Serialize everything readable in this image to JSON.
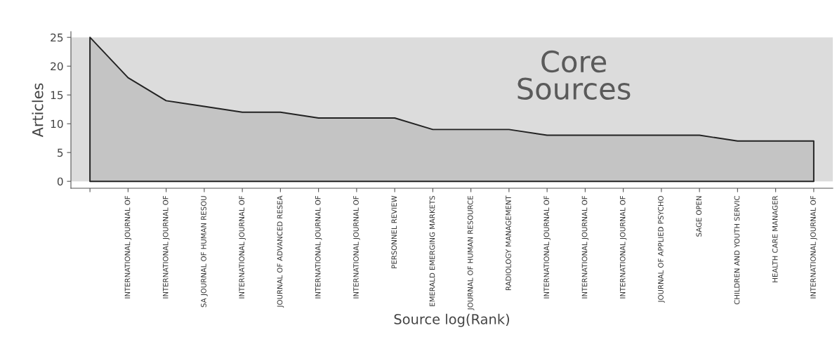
{
  "chart_data": {
    "type": "area",
    "xlabel": "Source log(Rank)",
    "ylabel": "Articles",
    "categories": [
      null,
      "INTERNATIONAL JOURNAL OF",
      "INTERNATIONAL JOURNAL OF",
      "SA JOURNAL OF HUMAN RESOU",
      "INTERNATIONAL JOURNAL OF",
      "JOURNAL OF ADVANCED RESEA",
      "INTERNATIONAL JOURNAL OF",
      "INTERNATIONAL JOURNAL OF",
      "PERSONNEL REVIEW",
      "EMERALD EMERGING MARKETS",
      "JOURNAL OF HUMAN RESOURCE",
      "RADIOLOGY MANAGEMENT",
      "INTERNATIONAL JOURNAL OF",
      "INTERNATIONAL JOURNAL OF",
      "INTERNATIONAL JOURNAL OF",
      "JOURNAL OF APPLIED PSYCHO",
      "SAGE OPEN",
      "CHILDREN AND YOUTH SERVIC",
      "HEALTH CARE MANAGER",
      "INTERNATIONAL JOURNAL OF"
    ],
    "series": [
      {
        "color": "#c4c4c4",
        "values": [
          25,
          18,
          14,
          13,
          12,
          12,
          11,
          11,
          11,
          9,
          9,
          9,
          8,
          8,
          8,
          8,
          8,
          7,
          7,
          7
        ]
      }
    ],
    "ylim": [
      -1.2,
      26
    ],
    "yticks": [
      0,
      5,
      10,
      15,
      20,
      25
    ],
    "bands": [
      {
        "axis": "y",
        "from": 0,
        "to": 25,
        "label": "Core\nSources",
        "color": "#dcdcdc"
      }
    ],
    "grid": false,
    "legend": false
  }
}
